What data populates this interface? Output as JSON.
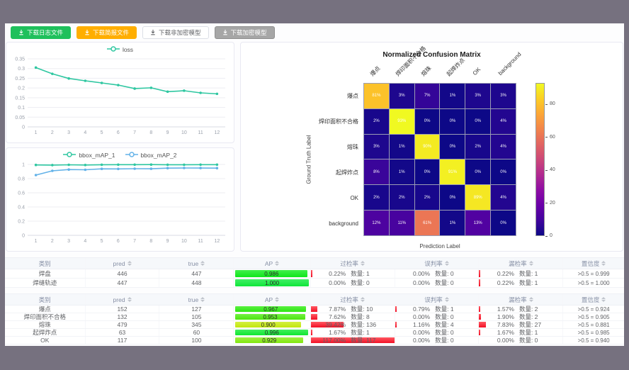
{
  "frame": {
    "chrome_color": "#76717f",
    "content_bg": "#fdfdfe"
  },
  "toolbar": {
    "buttons": [
      {
        "label": "下载日志文件",
        "bg": "#1fc05c",
        "fg": "#ffffff",
        "border": "#1fc05c"
      },
      {
        "label": "下载简报文件",
        "bg": "#ffae00",
        "fg": "#ffffff",
        "border": "#ffae00"
      },
      {
        "label": "下载非加密模型",
        "bg": "#ffffff",
        "fg": "#606266",
        "border": "#dcdfe6"
      },
      {
        "label": "下载加密模型",
        "bg": "#a6a6a6",
        "fg": "#ffffff",
        "border": "#8f8f8f"
      }
    ]
  },
  "chart_data": [
    {
      "id": "loss",
      "type": "line",
      "title": "",
      "x": [
        1,
        2,
        3,
        4,
        5,
        6,
        7,
        8,
        9,
        10,
        11,
        12
      ],
      "series": [
        {
          "name": "loss",
          "color": "#2fc7a1",
          "values": [
            0.305,
            0.273,
            0.249,
            0.237,
            0.226,
            0.215,
            0.197,
            0.201,
            0.181,
            0.186,
            0.175,
            0.17
          ]
        }
      ],
      "ylim": [
        0,
        0.35
      ],
      "yticks": [
        0,
        0.05,
        0.1,
        0.15,
        0.2,
        0.25,
        0.3,
        0.35
      ],
      "legend_position": "top",
      "grid": true
    },
    {
      "id": "map",
      "type": "line",
      "title": "",
      "x": [
        1,
        2,
        3,
        4,
        5,
        6,
        7,
        8,
        9,
        10,
        11,
        12
      ],
      "series": [
        {
          "name": "bbox_mAP_1",
          "color": "#2fc7a1",
          "values": [
            0.993,
            0.991,
            0.995,
            0.992,
            0.996,
            0.997,
            0.997,
            0.998,
            0.996,
            0.996,
            0.997,
            0.997
          ]
        },
        {
          "name": "bbox_mAP_2",
          "color": "#63b2e8",
          "values": [
            0.85,
            0.91,
            0.928,
            0.925,
            0.938,
            0.937,
            0.94,
            0.939,
            0.948,
            0.95,
            0.949,
            0.948
          ]
        }
      ],
      "ylim": [
        0,
        1
      ],
      "yticks": [
        0,
        0.2,
        0.4,
        0.6,
        0.8,
        1
      ],
      "legend_position": "top",
      "grid": true
    },
    {
      "id": "confusion",
      "type": "heatmap",
      "title": "Normalized Confusion Matrix",
      "xlabel": "Prediction Label",
      "ylabel": "Ground Truth Label",
      "labels": [
        "爆点",
        "焊印面积不合格",
        "熔珠",
        "起焊炸点",
        "OK",
        "background"
      ],
      "matrix_percent": [
        [
          81,
          3,
          7,
          1,
          3,
          3
        ],
        [
          2,
          93,
          0,
          0,
          0,
          4
        ],
        [
          3,
          1,
          90,
          0,
          2,
          4
        ],
        [
          8,
          1,
          0,
          91,
          0,
          0
        ],
        [
          2,
          2,
          2,
          0,
          89,
          4
        ],
        [
          12,
          11,
          61,
          1,
          13,
          0
        ]
      ],
      "vmax": 93,
      "colormap": "plasma",
      "colorbar_ticks": [
        0,
        20,
        40,
        60,
        80
      ]
    }
  ],
  "tables": [
    {
      "headers": [
        {
          "label": "类别",
          "sortable": false
        },
        {
          "label": "pred",
          "sortable": true
        },
        {
          "label": "true",
          "sortable": true
        },
        {
          "label": "AP",
          "sortable": true
        },
        {
          "label": "过检率",
          "sortable": true
        },
        {
          "label": "误判率",
          "sortable": true
        },
        {
          "label": "漏检率",
          "sortable": true
        },
        {
          "label": "置信度",
          "sortable": true
        }
      ],
      "rows": [
        {
          "cls": "焊盘",
          "pred": "446",
          "true": "447",
          "ap": "0.986",
          "ap_val": 0.986,
          "metrics": [
            {
              "pct": "0.22%",
              "cnt": "数量: 1",
              "val": 0.22
            },
            {
              "pct": "0.00%",
              "cnt": "数量: 0",
              "val": 0
            },
            {
              "pct": "0.22%",
              "cnt": "数量: 1",
              "val": 0.22
            }
          ],
          "conf": ">0.5 = 0.999"
        },
        {
          "cls": "焊缝轨迹",
          "pred": "447",
          "true": "448",
          "ap": "1.000",
          "ap_val": 1.0,
          "metrics": [
            {
              "pct": "0.00%",
              "cnt": "数量: 0",
              "val": 0
            },
            {
              "pct": "0.00%",
              "cnt": "数量: 0",
              "val": 0
            },
            {
              "pct": "0.22%",
              "cnt": "数量: 1",
              "val": 0.22
            }
          ],
          "conf": ">0.5 = 1.000"
        }
      ]
    },
    {
      "headers": [
        {
          "label": "类别",
          "sortable": false
        },
        {
          "label": "pred",
          "sortable": true
        },
        {
          "label": "true",
          "sortable": true
        },
        {
          "label": "AP",
          "sortable": true
        },
        {
          "label": "过检率",
          "sortable": true
        },
        {
          "label": "误判率",
          "sortable": true
        },
        {
          "label": "漏检率",
          "sortable": true
        },
        {
          "label": "置信度",
          "sortable": true
        }
      ],
      "rows": [
        {
          "cls": "爆点",
          "pred": "152",
          "true": "127",
          "ap": "0.967",
          "ap_val": 0.967,
          "metrics": [
            {
              "pct": "7.87%",
              "cnt": "数量: 10",
              "val": 7.87
            },
            {
              "pct": "0.79%",
              "cnt": "数量: 1",
              "val": 0.79
            },
            {
              "pct": "1.57%",
              "cnt": "数量: 2",
              "val": 1.57
            }
          ],
          "conf": ">0.5 = 0.924"
        },
        {
          "cls": "焊印面积不合格",
          "pred": "132",
          "true": "105",
          "ap": "0.953",
          "ap_val": 0.953,
          "metrics": [
            {
              "pct": "7.62%",
              "cnt": "数量: 8",
              "val": 7.62
            },
            {
              "pct": "0.00%",
              "cnt": "数量: 0",
              "val": 0
            },
            {
              "pct": "1.90%",
              "cnt": "数量: 2",
              "val": 1.9
            }
          ],
          "conf": ">0.5 = 0.905"
        },
        {
          "cls": "熔珠",
          "pred": "479",
          "true": "345",
          "ap": "0.900",
          "ap_val": 0.9,
          "metrics": [
            {
              "pct": "39.42%",
              "cnt": "数量: 136",
              "val": 39.42
            },
            {
              "pct": "1.16%",
              "cnt": "数量: 4",
              "val": 1.16
            },
            {
              "pct": "7.83%",
              "cnt": "数量: 27",
              "val": 7.83
            }
          ],
          "conf": ">0.5 = 0.881"
        },
        {
          "cls": "起焊炸点",
          "pred": "63",
          "true": "60",
          "ap": "0.996",
          "ap_val": 0.996,
          "metrics": [
            {
              "pct": "1.67%",
              "cnt": "数量: 1",
              "val": 1.67
            },
            {
              "pct": "0.00%",
              "cnt": "数量: 0",
              "val": 0
            },
            {
              "pct": "1.67%",
              "cnt": "数量: 1",
              "val": 1.67
            }
          ],
          "conf": ">0.5 = 0.985"
        },
        {
          "cls": "OK",
          "pred": "117",
          "true": "100",
          "ap": "0.929",
          "ap_val": 0.929,
          "metrics": [
            {
              "pct": "117.00%",
              "cnt": "数量: 117",
              "val": 117
            },
            {
              "pct": "0.00%",
              "cnt": "数量: 0",
              "val": 0
            },
            {
              "pct": "0.00%",
              "cnt": "数量: 0",
              "val": 0
            }
          ],
          "conf": ">0.5 = 0.940"
        }
      ]
    }
  ]
}
